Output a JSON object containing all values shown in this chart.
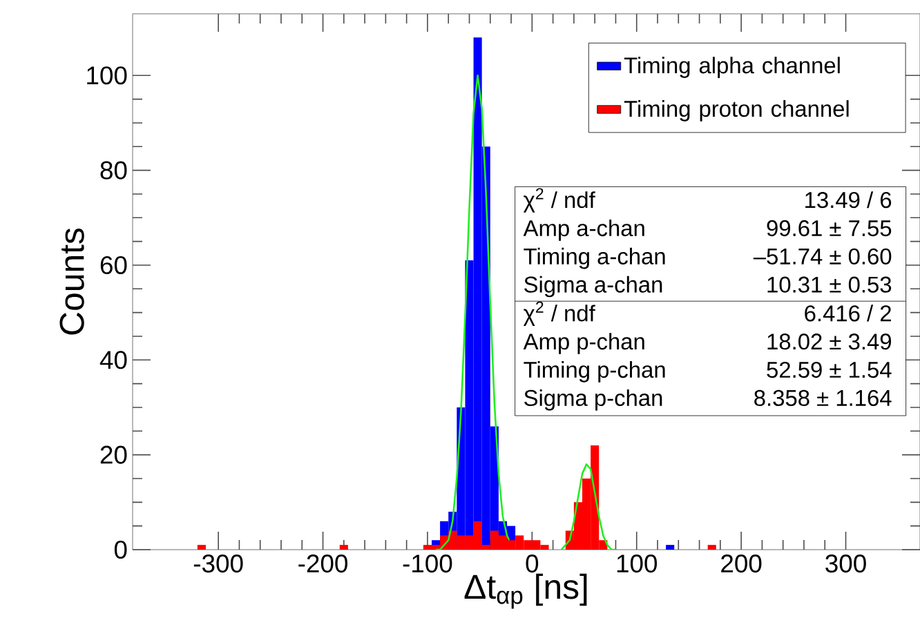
{
  "chart_data": {
    "type": "histogram",
    "xlabel": "Δt$_{αp}$ [ns]",
    "ylabel": "Counts",
    "bins": [
      -320,
      -312,
      -304,
      -296,
      -288,
      -280,
      -272,
      -264,
      -256,
      -248,
      -240,
      -232,
      -224,
      -216,
      -208,
      -200,
      -192,
      -184,
      -176,
      -168,
      -160,
      -152,
      -144,
      -136,
      -128,
      -120,
      -112,
      -104,
      -96,
      -88,
      -80,
      -72,
      -64,
      -56,
      -48,
      -40,
      -32,
      -24,
      -16,
      -8,
      0,
      8,
      16,
      24,
      32,
      40,
      48,
      56,
      64,
      72,
      80,
      88,
      96,
      104,
      112,
      120,
      128,
      136,
      144,
      152,
      160,
      168,
      176
    ],
    "series": [
      {
        "name": "Timing alpha channel",
        "color": "#0000ff",
        "values": [
          0,
          0,
          0,
          0,
          0,
          0,
          0,
          0,
          0,
          0,
          0,
          0,
          0,
          0,
          0,
          0,
          0,
          0,
          0,
          0,
          0,
          0,
          0,
          0,
          0,
          0,
          0,
          0,
          2,
          6,
          8,
          30,
          61,
          108,
          85,
          26,
          6,
          5,
          0,
          0,
          0,
          0,
          0,
          0,
          0,
          0,
          0,
          0,
          0,
          0,
          0,
          0,
          0,
          0,
          0,
          0,
          1,
          0,
          0,
          0,
          0,
          0
        ]
      },
      {
        "name": "Timing proton channel",
        "color": "#ff0000",
        "values": [
          1,
          0,
          0,
          0,
          0,
          0,
          0,
          0,
          0,
          0,
          0,
          0,
          0,
          0,
          0,
          0,
          0,
          1,
          0,
          0,
          0,
          0,
          0,
          0,
          0,
          0,
          0,
          1,
          1,
          3,
          4,
          3,
          3,
          6,
          1,
          4,
          3,
          2,
          3,
          2,
          2,
          1,
          0,
          0,
          4,
          10,
          15,
          22,
          2,
          0,
          0,
          0,
          0,
          0,
          0,
          0,
          0,
          0,
          0,
          0,
          0,
          1
        ]
      },
      {
        "type": "line",
        "color": "#22ee22",
        "x": [
          -92,
          -88,
          -84,
          -80,
          -76,
          -72,
          -68,
          -64,
          -60,
          -56,
          -52,
          -48,
          -44,
          -40,
          -36,
          -32,
          -28,
          -24,
          -22
        ],
        "values": [
          0,
          0,
          1,
          2,
          6,
          15,
          29,
          49,
          72,
          92,
          100,
          93,
          75,
          52,
          31,
          16,
          7,
          3,
          2
        ]
      },
      {
        "type": "line",
        "color": "#22ee22",
        "x": [
          28,
          32,
          36,
          40,
          44,
          48,
          52,
          56,
          60,
          64,
          68,
          72,
          76,
          80
        ],
        "values": [
          0,
          1,
          2,
          6,
          11,
          16,
          18,
          17,
          12,
          7,
          3,
          1,
          0,
          0
        ]
      }
    ],
    "xlim": [
      -382,
      371
    ],
    "ylim": [
      0,
      113
    ],
    "xticks": [
      -300,
      -200,
      -100,
      0,
      100,
      200,
      300
    ],
    "yticks": [
      0,
      20,
      40,
      60,
      80,
      100
    ],
    "legend": "top right",
    "annotations": [
      "χ$^{2}$ / ndf",
      "13.49 / 6",
      "Amp a-chan",
      "99.61 ± 7.55",
      "Timing a-chan",
      "–51.74 ± 0.60",
      "Sigma a-chan",
      "10.31 ± 0.53",
      "χ$^{2}$ / ndf",
      "6.416 / 2",
      "Amp p-chan",
      "18.02 ± 3.49",
      "Timing p-chan",
      "52.59 ± 1.54",
      "Sigma p-chan",
      "8.358 ± 1.164"
    ]
  }
}
